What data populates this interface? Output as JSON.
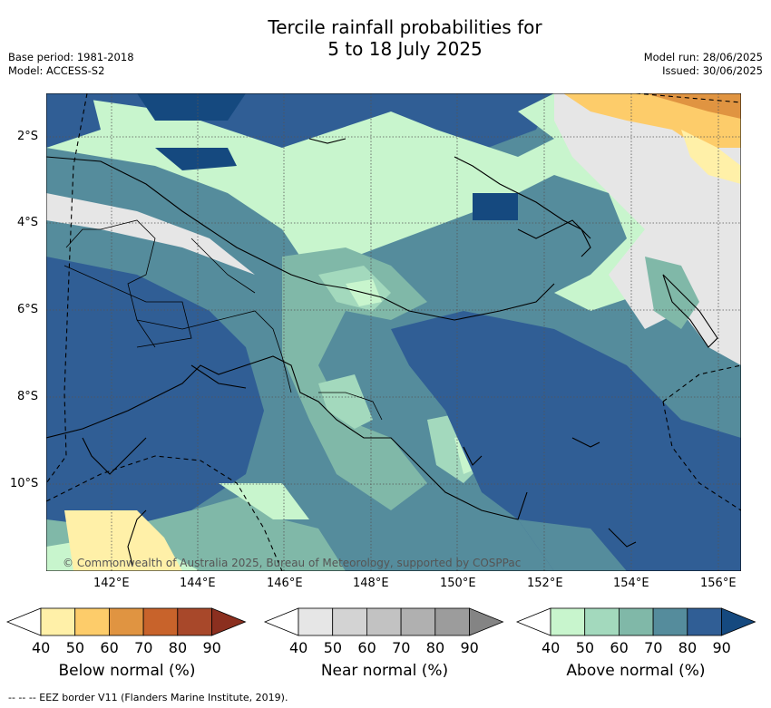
{
  "title_line1": "Tercile rainfall probabilities for",
  "title_line2": "5 to 18 July 2025",
  "meta_left": {
    "base_period": "Base period: 1981-2018",
    "model": "Model: ACCESS-S2"
  },
  "meta_right": {
    "model_run": "Model run: 28/06/2025",
    "issued": "Issued: 30/06/2025"
  },
  "map": {
    "copyright": "© Commonwealth of Australia 2025, Bureau of Meteorology, supported by COSPPac",
    "lat_labels": [
      "2°S",
      "4°S",
      "6°S",
      "8°S",
      "10°S"
    ],
    "lon_labels": [
      "142°E",
      "144°E",
      "146°E",
      "148°E",
      "150°E",
      "152°E",
      "154°E",
      "156°E"
    ]
  },
  "legends": [
    {
      "label": "Below normal (%)",
      "ticks": [
        "40",
        "50",
        "60",
        "70",
        "80",
        "90"
      ],
      "colors": [
        "#ffffff",
        "#fff0a8",
        "#fdcc6a",
        "#e09441",
        "#c8632b",
        "#a8482a",
        "#8b2f1f"
      ]
    },
    {
      "label": "Near normal (%)",
      "ticks": [
        "40",
        "50",
        "60",
        "70",
        "80",
        "90"
      ],
      "colors": [
        "#ffffff",
        "#e6e6e6",
        "#d3d3d3",
        "#c2c2c2",
        "#b0b0b0",
        "#9c9c9c",
        "#848484"
      ]
    },
    {
      "label": "Above normal (%)",
      "ticks": [
        "40",
        "50",
        "60",
        "70",
        "80",
        "90"
      ],
      "colors": [
        "#ffffff",
        "#c8f5cd",
        "#a3d9bd",
        "#80b8a8",
        "#558c9c",
        "#305e95",
        "#15497f"
      ]
    }
  ],
  "footer": "--  --  -- EEZ border V11 (Flanders Marine Institute, 2019)."
}
